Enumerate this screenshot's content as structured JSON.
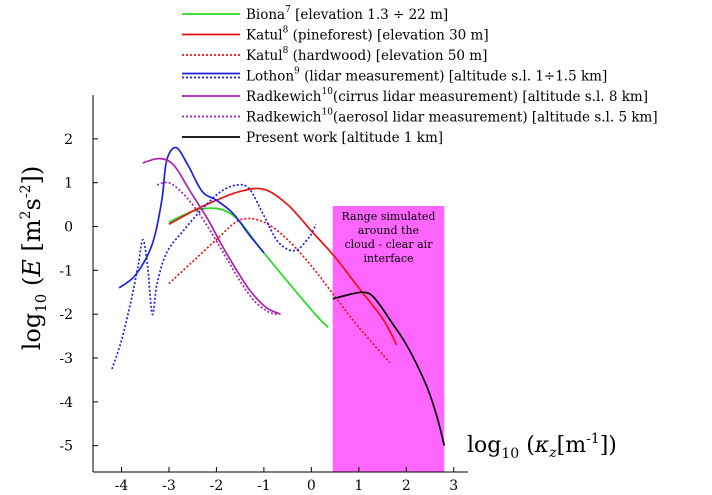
{
  "chart_data": {
    "type": "line",
    "xlabel": {
      "prefix": "log",
      "sub": "10",
      "open": " (",
      "var": "κ",
      "varsub": "z",
      "bracket": "[m",
      "exp": "-1",
      "close": "])"
    },
    "ylabel": {
      "prefix": "log",
      "sub": "10",
      "open": " (",
      "var": "E",
      "bracket": " [m",
      "exp1": "2",
      "mid": "s",
      "exp2": "-2",
      "close": "])"
    },
    "xlim": [
      -4.6,
      3.3
    ],
    "ylim": [
      -5.6,
      3.0
    ],
    "xticks": [
      "-4",
      "-3",
      "-2",
      "-1",
      "0",
      "1",
      "2",
      "3"
    ],
    "xtick_values": [
      -4,
      -3,
      -2,
      -1,
      0,
      1,
      2,
      3
    ],
    "yticks": [
      "2",
      "1",
      "0",
      "-1",
      "-2",
      "-3",
      "-4",
      "-5"
    ],
    "ytick_values": [
      2,
      1,
      0,
      -1,
      -2,
      -3,
      -4,
      -5
    ],
    "highlight": {
      "x_range": [
        0.45,
        2.8
      ],
      "color": "#ff66ff",
      "lines": [
        "Range simulated",
        "around the",
        "cloud - clear air",
        "interface"
      ]
    },
    "legend": [
      {
        "name": "Biona",
        "sup": "7",
        "desc": " [elevation 1.3 ÷ 22 m]",
        "color": "#22dd22",
        "style": "solid"
      },
      {
        "name": "Katul",
        "sup": "8",
        "desc": " (pineforest) [elevation 30 m]",
        "color": "#ee1111",
        "style": "solid"
      },
      {
        "name": "Katul",
        "sup": "8",
        "desc": " (hardwood) [elevation 50 m]",
        "color": "#ee1111",
        "style": "dotted"
      },
      {
        "name": "Lothon",
        "sup": "9",
        "desc": " (lidar measurement) [altitude s.l. 1÷1.5 km]",
        "color": "#1f22dd",
        "style": "solid+dotted"
      },
      {
        "name": "Radkewich",
        "sup": "10",
        "desc": "(cirrus lidar measurement) [altitude s.l. 8 km]",
        "color": "#aa22aa",
        "style": "solid"
      },
      {
        "name": "Radkewich",
        "sup": "10",
        "desc": "(aerosol lidar measurement) [altitude s.l. 5 km]",
        "color": "#aa22aa",
        "style": "dotted"
      },
      {
        "name": "Present work [altitude 1 km]",
        "sup": "",
        "desc": "",
        "color": "#000000",
        "style": "solid"
      }
    ],
    "series": [
      {
        "name": "Biona",
        "color": "#22dd22",
        "dash": "",
        "x": [
          -3.0,
          -2.5,
          -2.1,
          -1.8,
          -1.5,
          -1.0,
          0.0,
          0.35
        ],
        "y": [
          0.1,
          0.35,
          0.42,
          0.35,
          0.1,
          -0.6,
          -1.9,
          -2.3
        ]
      },
      {
        "name": "Katul pineforest",
        "color": "#ee1111",
        "dash": "",
        "x": [
          -3.0,
          -2.5,
          -2.0,
          -1.5,
          -1.0,
          -0.5,
          0.0,
          0.5,
          1.0,
          1.5,
          1.8
        ],
        "y": [
          0.05,
          0.35,
          0.6,
          0.8,
          0.85,
          0.5,
          -0.1,
          -0.7,
          -1.4,
          -2.1,
          -2.7
        ]
      },
      {
        "name": "Katul hardwood",
        "color": "#ee1111",
        "dash": "2,2",
        "x": [
          -3.0,
          -2.5,
          -2.0,
          -1.5,
          -1.0,
          -0.5,
          0.0,
          0.5,
          1.0,
          1.65
        ],
        "y": [
          -1.3,
          -0.8,
          -0.3,
          0.15,
          0.1,
          -0.3,
          -0.9,
          -1.6,
          -2.3,
          -3.1
        ]
      },
      {
        "name": "Lothon solid",
        "color": "#1f22dd",
        "dash": "",
        "x": [
          -4.05,
          -3.7,
          -3.35,
          -3.15,
          -3.05,
          -2.85,
          -2.6,
          -2.3,
          -2.0,
          -1.65,
          -1.3,
          -1.0
        ],
        "y": [
          -1.4,
          -1.1,
          -0.4,
          0.6,
          1.5,
          1.8,
          1.4,
          0.8,
          0.6,
          0.3,
          -0.2,
          -0.6
        ]
      },
      {
        "name": "Lothon dotted",
        "color": "#1f22dd",
        "dash": "2,2",
        "x": [
          -4.2,
          -4.0,
          -3.8,
          -3.65,
          -3.55,
          -3.45,
          -3.35,
          -3.25,
          -3.05,
          -2.7,
          -2.3,
          -1.9,
          -1.55,
          -1.3,
          -1.0,
          -0.7,
          -0.35,
          -0.05,
          0.1
        ],
        "y": [
          -3.25,
          -2.6,
          -1.7,
          -0.9,
          -0.3,
          -0.9,
          -2.0,
          -1.3,
          -0.6,
          -0.1,
          0.4,
          0.8,
          0.95,
          0.85,
          0.25,
          -0.35,
          -0.55,
          -0.25,
          0.05
        ]
      },
      {
        "name": "Radkewich cirrus",
        "color": "#aa22aa",
        "dash": "",
        "x": [
          -3.55,
          -3.2,
          -2.9,
          -2.55,
          -2.2,
          -1.9,
          -1.6,
          -1.3,
          -0.95,
          -0.65
        ],
        "y": [
          1.45,
          1.55,
          1.4,
          0.8,
          0.2,
          -0.4,
          -0.95,
          -1.45,
          -1.85,
          -2.0
        ]
      },
      {
        "name": "Radkewich aerosol",
        "color": "#aa22aa",
        "dash": "2,2",
        "x": [
          -3.25,
          -3.0,
          -2.7,
          -2.4,
          -2.1,
          -1.8,
          -1.5,
          -1.2,
          -0.9,
          -0.7
        ],
        "y": [
          0.95,
          1.0,
          0.75,
          0.35,
          -0.15,
          -0.7,
          -1.25,
          -1.7,
          -1.95,
          -2.0
        ]
      },
      {
        "name": "Present work",
        "color": "#000000",
        "dash": "",
        "x": [
          0.45,
          0.8,
          1.05,
          1.25,
          1.45,
          1.7,
          1.95,
          2.2,
          2.45,
          2.65,
          2.8
        ],
        "y": [
          -1.65,
          -1.55,
          -1.5,
          -1.55,
          -1.8,
          -2.2,
          -2.6,
          -3.1,
          -3.7,
          -4.35,
          -5.0
        ]
      }
    ]
  }
}
